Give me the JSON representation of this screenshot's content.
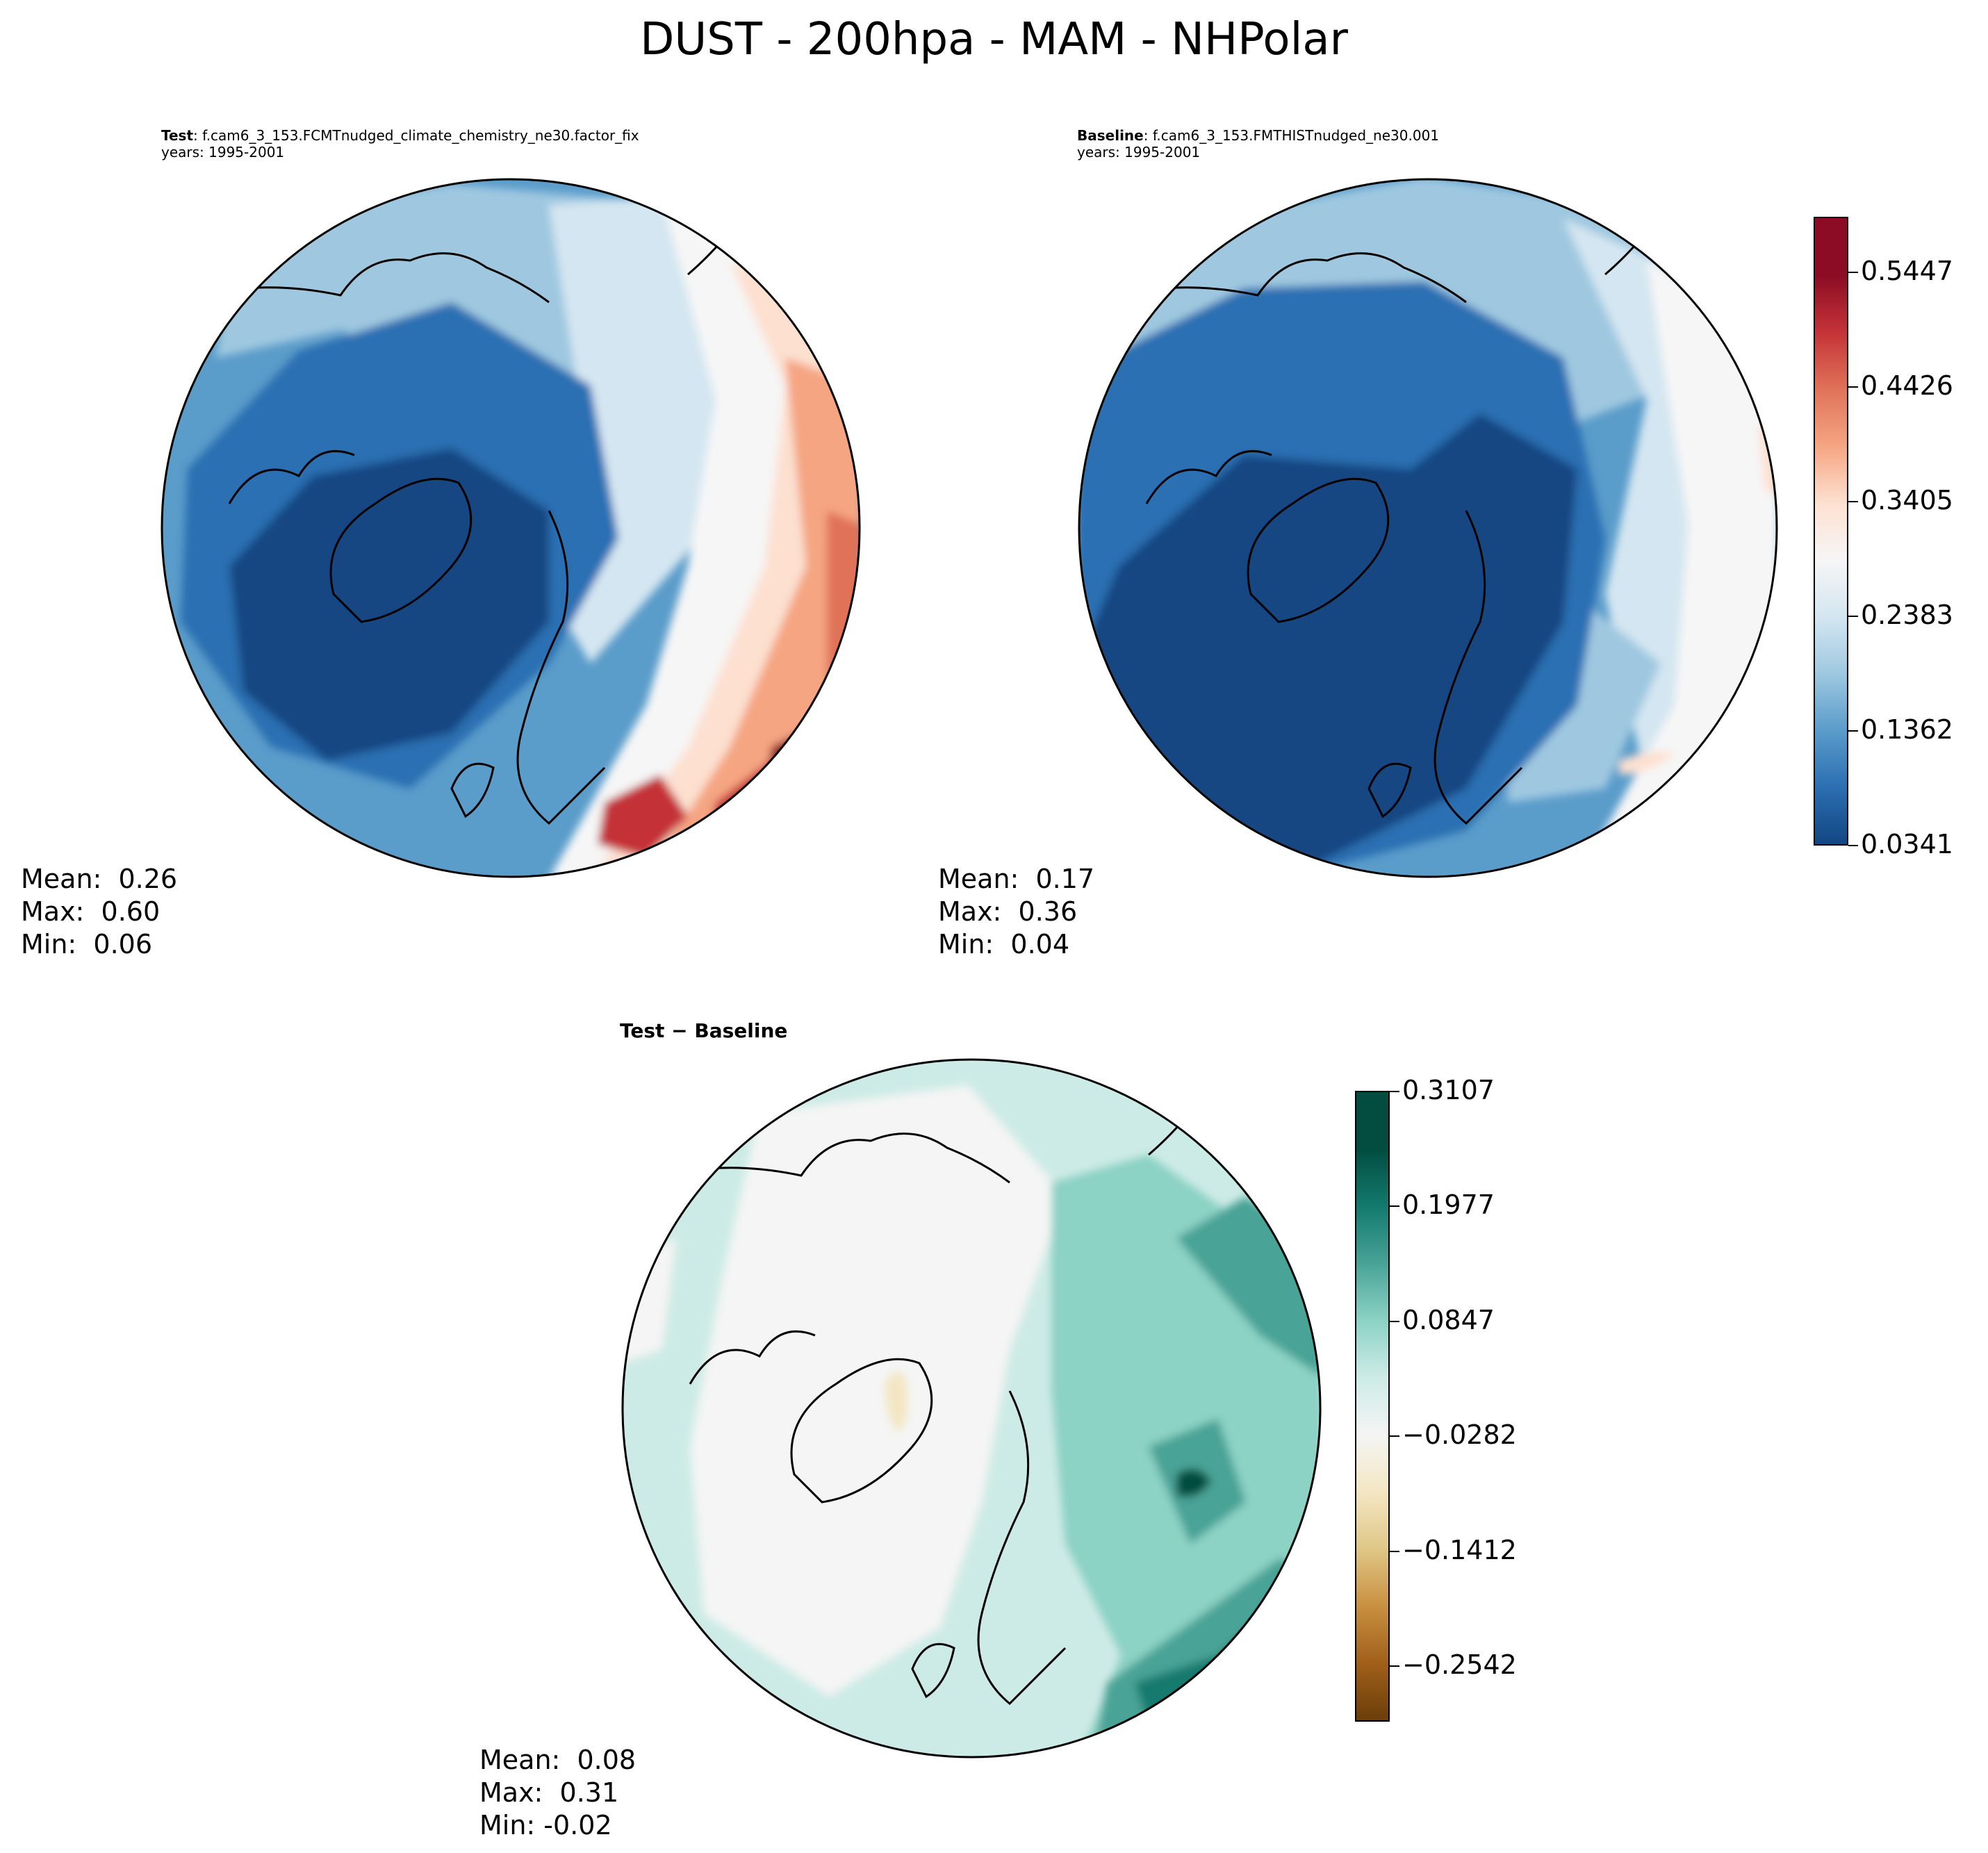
{
  "figure": {
    "title": "DUST - 200hpa - MAM - NHPolar"
  },
  "panels": {
    "test": {
      "label": "Test",
      "case": ": f.cam6_3_153.FCMTnudged_climate_chemistry_ne30.factor_fix",
      "years": "years: 1995-2001",
      "mean": "Mean:  0.26",
      "max": "Max:  0.60",
      "min": "Min:  0.06"
    },
    "baseline": {
      "label": "Baseline",
      "case": ": f.cam6_3_153.FMTHISTnudged_ne30.001",
      "years": "years: 1995-2001",
      "mean": "Mean:  0.17",
      "max": "Max:  0.36",
      "min": "Min:  0.04"
    },
    "diff": {
      "label": "Test − Baseline",
      "mean": "Mean:  0.08",
      "max": "Max:  0.31",
      "min": "Min: -0.02"
    }
  },
  "colorbars": {
    "main": {
      "ticks": [
        "0.0341",
        "0.1362",
        "0.2383",
        "0.3405",
        "0.4426",
        "0.5447"
      ],
      "colors": [
        "#124682",
        "#2c6fb2",
        "#5a9cca",
        "#9fc8e0",
        "#d4e6f1",
        "#f6f6f6",
        "#fde0d0",
        "#f5a582",
        "#e07259",
        "#c43338",
        "#8b0c24"
      ]
    },
    "diff": {
      "ticks": [
        "−0.2542",
        "−0.1412",
        "−0.0282",
        "0.0847",
        "0.1977",
        "0.3107"
      ],
      "colors": [
        "#6c3e0a",
        "#a0601a",
        "#c99040",
        "#dfc787",
        "#f4e6c3",
        "#f4f5f4",
        "#cdebe6",
        "#8cd2c5",
        "#48a396",
        "#137a6e",
        "#024d40"
      ]
    }
  }
}
